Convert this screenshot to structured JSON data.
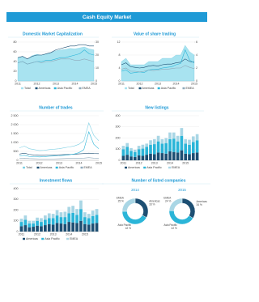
{
  "title": "Cash Equity Market",
  "chart_data": [
    {
      "type": "line",
      "title": "Domestic Market Capitalization",
      "categories": [
        "2011",
        null,
        null,
        null,
        "2012",
        null,
        null,
        null,
        "2013",
        null,
        null,
        null,
        "2014",
        null,
        null,
        null,
        "2015"
      ],
      "series": [
        {
          "name": "Total",
          "style": "area",
          "color": "#a8e3f0",
          "values": [
            48,
            50,
            45,
            52,
            55,
            53,
            56,
            58,
            62,
            64,
            65,
            67,
            66,
            68,
            70,
            66,
            64
          ]
        },
        {
          "name": "Americas",
          "style": "line",
          "axis": "y2",
          "color": "#1d4f73",
          "values": [
            18,
            19,
            17,
            19,
            20,
            20,
            21,
            22,
            24,
            25,
            26,
            27,
            27,
            28,
            28,
            27,
            27
          ]
        },
        {
          "name": "Asia Pacific",
          "style": "line",
          "axis": "y2",
          "color": "#2bb5d8",
          "values": [
            14,
            15,
            13,
            14,
            15,
            15,
            16,
            16,
            17,
            18,
            18,
            19,
            20,
            21,
            24,
            21,
            20
          ]
        },
        {
          "name": "EMEA",
          "style": "line",
          "axis": "y2",
          "color": "#8fa9ba",
          "values": [
            14,
            15,
            13,
            14,
            15,
            14,
            15,
            15,
            16,
            17,
            17,
            17,
            16,
            16,
            17,
            16,
            15
          ]
        }
      ],
      "ylim": [
        0,
        80
      ],
      "yticks": [
        0,
        20,
        40,
        60,
        80
      ],
      "y2lim": [
        0,
        30
      ],
      "y2ticks": [
        0,
        10,
        20,
        30
      ],
      "grid": true
    },
    {
      "type": "line",
      "title": "Value of share trading",
      "categories": [
        "2011",
        null,
        null,
        null,
        "2012",
        null,
        null,
        null,
        "2013",
        null,
        null,
        null,
        "2014",
        null,
        null,
        null,
        "2015"
      ],
      "series": [
        {
          "name": "Total",
          "style": "area",
          "color": "#a8e3f0",
          "values": [
            6,
            7,
            5,
            5,
            5,
            5,
            6,
            6,
            6,
            7,
            7,
            7,
            8,
            8,
            11,
            9,
            8
          ]
        },
        {
          "name": "Americas",
          "style": "line",
          "axis": "y2",
          "color": "#1d4f73",
          "values": [
            2.5,
            2.8,
            2.2,
            2.1,
            2.0,
            2.1,
            2.3,
            2.4,
            2.3,
            2.5,
            2.6,
            2.6,
            2.8,
            2.9,
            3.4,
            3.0,
            2.9
          ]
        },
        {
          "name": "Asia Pacific",
          "style": "line",
          "axis": "y2",
          "color": "#2bb5d8",
          "values": [
            1.5,
            1.7,
            1.2,
            1.3,
            1.4,
            1.3,
            1.7,
            1.8,
            1.8,
            2.0,
            2.1,
            2.2,
            2.5,
            2.7,
            4.8,
            3.2,
            2.8
          ]
        },
        {
          "name": "EMEA",
          "style": "line",
          "axis": "y2",
          "color": "#8fa9ba",
          "values": [
            1.8,
            2.0,
            1.5,
            1.5,
            1.4,
            1.5,
            1.7,
            1.6,
            1.7,
            1.8,
            1.8,
            1.9,
            2.0,
            2.0,
            2.4,
            2.1,
            1.9
          ]
        }
      ],
      "ylim": [
        0,
        12
      ],
      "yticks": [
        0,
        4,
        8,
        12
      ],
      "y2lim": [
        0,
        6
      ],
      "y2ticks": [
        0,
        2,
        4,
        6
      ],
      "grid": true
    },
    {
      "type": "line",
      "title": "Number of trades",
      "categories": [
        "2011",
        null,
        null,
        null,
        "2012",
        null,
        null,
        null,
        "2013",
        null,
        null,
        null,
        "2014",
        null,
        null,
        null,
        "2015"
      ],
      "series": [
        {
          "name": "Total",
          "style": "line",
          "color": "#7fd0e4",
          "values": [
            700,
            800,
            650,
            600,
            550,
            560,
            600,
            620,
            650,
            700,
            750,
            800,
            900,
            1100,
            2100,
            1400,
            1100
          ]
        },
        {
          "name": "Americas",
          "style": "line",
          "color": "#1d4f73",
          "values": [
            350,
            400,
            330,
            300,
            280,
            280,
            290,
            300,
            310,
            320,
            330,
            340,
            360,
            380,
            400,
            380,
            370
          ]
        },
        {
          "name": "Asia Pacific",
          "style": "line",
          "color": "#2bb5d8",
          "values": [
            250,
            280,
            220,
            210,
            190,
            200,
            230,
            240,
            250,
            280,
            310,
            350,
            430,
            600,
            1600,
            900,
            650
          ]
        },
        {
          "name": "EMEA",
          "style": "line",
          "color": "#8fa9ba",
          "values": [
            100,
            120,
            100,
            90,
            80,
            80,
            80,
            80,
            90,
            100,
            110,
            110,
            110,
            120,
            150,
            120,
            110
          ]
        }
      ],
      "ylim": [
        0,
        2500
      ],
      "yticks": [
        0,
        500,
        {
          "value": 1000,
          "label": "1 000"
        },
        {
          "value": 1500,
          "label": "1 500"
        },
        {
          "value": 2000,
          "label": "2 000"
        },
        {
          "value": 2500,
          "label": "2 500"
        }
      ],
      "grid": true
    },
    {
      "type": "bar",
      "title": "New listings",
      "categories": [
        "2011",
        null,
        null,
        null,
        "2012",
        null,
        null,
        null,
        "2013",
        null,
        null,
        null,
        "2014",
        null,
        null,
        null,
        "2015",
        null,
        null,
        null
      ],
      "series": [
        {
          "name": "Americas",
          "style": "bar",
          "color": "#1d4f73",
          "values": [
            40,
            50,
            35,
            30,
            45,
            40,
            50,
            60,
            55,
            70,
            65,
            60,
            80,
            75,
            70,
            90,
            60,
            55,
            65,
            70
          ]
        },
        {
          "name": "Asia Pacific",
          "style": "bar",
          "color": "#2bb5d8",
          "values": [
            60,
            70,
            50,
            45,
            55,
            65,
            70,
            80,
            90,
            100,
            85,
            95,
            110,
            120,
            100,
            130,
            90,
            85,
            100,
            110
          ]
        },
        {
          "name": "EMEA",
          "style": "bar",
          "color": "#a9d6e5",
          "values": [
            30,
            35,
            25,
            20,
            30,
            35,
            30,
            40,
            45,
            50,
            40,
            45,
            60,
            55,
            50,
            70,
            40,
            45,
            50,
            55
          ]
        }
      ],
      "ylim": [
        0,
        400
      ],
      "yticks": [
        0,
        100,
        200,
        300,
        400
      ],
      "grid": true
    },
    {
      "type": "bar",
      "title": "Investment flows",
      "categories": [
        "2011",
        null,
        null,
        null,
        "2012",
        null,
        null,
        null,
        "2013",
        null,
        null,
        null,
        "2014",
        null,
        null,
        null,
        "2015",
        null,
        null,
        null
      ],
      "series": [
        {
          "name": "Americas",
          "style": "bar",
          "color": "#1d4f73",
          "values": [
            50,
            60,
            40,
            45,
            55,
            50,
            60,
            70,
            65,
            80,
            75,
            70,
            90,
            85,
            80,
            100,
            70,
            65,
            75,
            80
          ]
        },
        {
          "name": "Asia Pacific",
          "style": "bar",
          "color": "#2bb5d8",
          "values": [
            40,
            50,
            35,
            30,
            45,
            40,
            50,
            55,
            60,
            70,
            60,
            65,
            80,
            90,
            75,
            110,
            65,
            60,
            70,
            75
          ]
        },
        {
          "name": "EMEA",
          "style": "bar",
          "color": "#a9d6e5",
          "values": [
            30,
            40,
            25,
            25,
            30,
            35,
            40,
            45,
            40,
            50,
            45,
            50,
            60,
            65,
            55,
            80,
            45,
            40,
            50,
            55
          ]
        }
      ],
      "ylim": [
        0,
        400
      ],
      "yticks": [
        0,
        100,
        200,
        300,
        400
      ],
      "grid": true
    },
    {
      "type": "donut",
      "title": "Number of listed companies",
      "pies": [
        {
          "title": "2014",
          "categories": [
            "Americas",
            "Asia Pacific",
            "EMEA"
          ],
          "colors": [
            "#1d4f73",
            "#2bb5d8",
            "#a9d6e5"
          ],
          "values": [
            33,
            42,
            25
          ],
          "value_labels": [
            "33 %",
            "42 %",
            "25 %"
          ]
        },
        {
          "title": "2015",
          "categories": [
            "Americas",
            "Asia Pacific",
            "EMEA"
          ],
          "colors": [
            "#1d4f73",
            "#2bb5d8",
            "#a9d6e5"
          ],
          "values": [
            34,
            42,
            24
          ],
          "value_labels": [
            "34 %",
            "42 %",
            "24 %"
          ]
        }
      ]
    }
  ]
}
